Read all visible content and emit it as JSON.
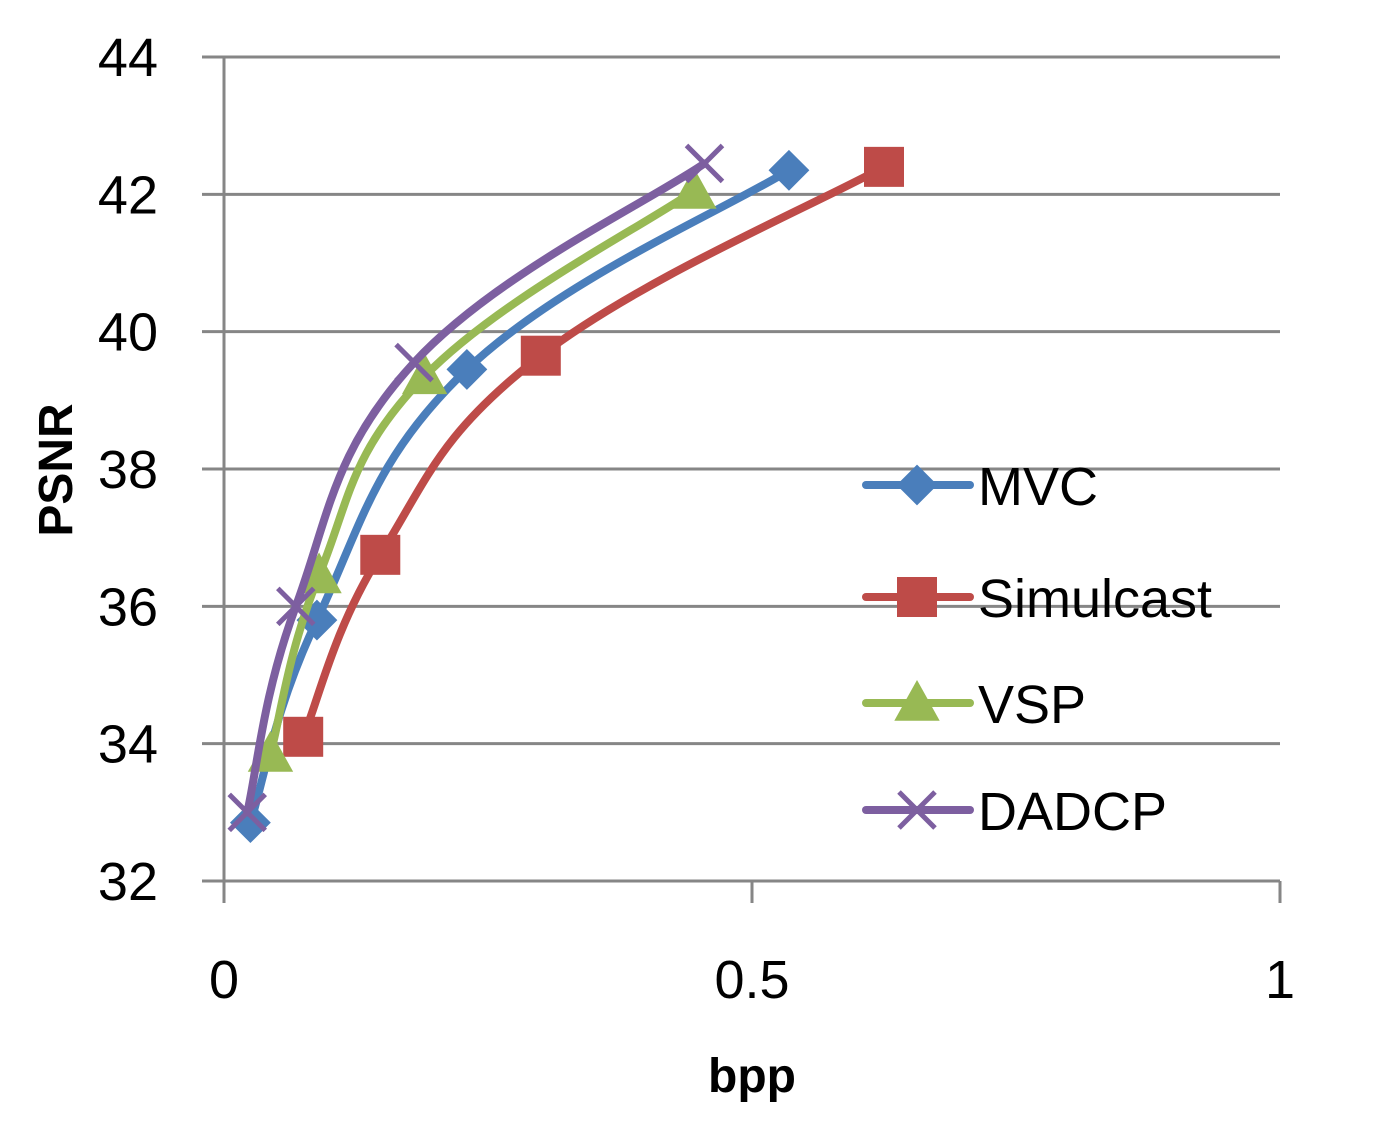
{
  "chart_data": {
    "type": "line",
    "title": "",
    "xlabel": "bpp",
    "ylabel": "PSNR",
    "xlim": [
      0,
      1
    ],
    "ylim": [
      32,
      44
    ],
    "xticks": [
      0,
      0.5,
      1
    ],
    "xtick_labels": [
      "0",
      "0.5",
      "1"
    ],
    "yticks": [
      32,
      34,
      36,
      38,
      40,
      42,
      44
    ],
    "ytick_labels": [
      "32",
      "34",
      "36",
      "38",
      "40",
      "42",
      "44"
    ],
    "grid": "horizontal",
    "legend_position": "right",
    "series": [
      {
        "name": "MVC",
        "color": "#4a7ebb",
        "marker": "diamond",
        "points": [
          [
            0.025,
            32.85
          ],
          [
            0.088,
            35.8
          ],
          [
            0.23,
            39.45
          ],
          [
            0.535,
            42.35
          ]
        ]
      },
      {
        "name": "Simulcast",
        "color": "#be4b48",
        "marker": "square",
        "points": [
          [
            0.075,
            34.1
          ],
          [
            0.148,
            36.75
          ],
          [
            0.3,
            39.65
          ],
          [
            0.625,
            42.4
          ]
        ]
      },
      {
        "name": "VSP",
        "color": "#98b954",
        "marker": "triangle",
        "points": [
          [
            0.044,
            33.85
          ],
          [
            0.09,
            36.45
          ],
          [
            0.19,
            39.35
          ],
          [
            0.445,
            42.05
          ]
        ]
      },
      {
        "name": "DADCP",
        "color": "#7d5fa0",
        "marker": "x",
        "points": [
          [
            0.022,
            33.0
          ],
          [
            0.068,
            36.0
          ],
          [
            0.18,
            39.55
          ],
          [
            0.455,
            42.45
          ]
        ]
      }
    ]
  }
}
